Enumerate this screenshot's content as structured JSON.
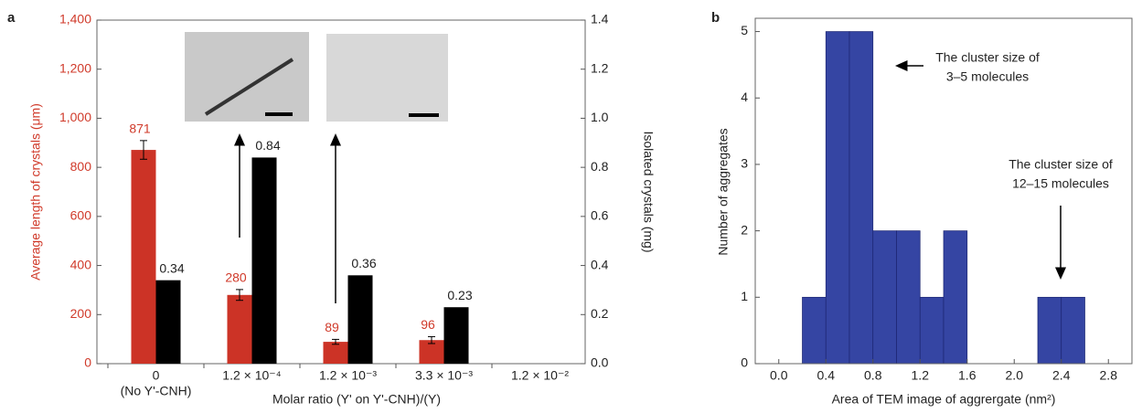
{
  "chart_data": [
    {
      "type": "bar",
      "panel": "a",
      "categories": [
        "0",
        "1.2 × 10⁻⁴",
        "1.2 × 10⁻³",
        "3.3 × 10⁻³",
        "1.2 × 10⁻²"
      ],
      "category_note": "(No Y'-CNH)",
      "xlabel": "Molar ratio (Y' on Y'-CNH)/(Y)",
      "ylabel": "Average length of crystals (μm)",
      "y2label": "Isolated crystals (mg)",
      "series": [
        {
          "color": "#cc3326",
          "values": [
            871,
            280,
            89,
            96,
            null
          ],
          "errors": [
            38,
            22,
            10,
            14,
            null
          ]
        },
        {
          "color": "#000000",
          "axis": "y2",
          "values": [
            0.34,
            0.84,
            0.36,
            0.23,
            null
          ]
        }
      ],
      "ylim": [
        0,
        1400
      ],
      "yticks": [
        0,
        200,
        400,
        600,
        800,
        {
          "value": 1000,
          "label": "1,000"
        },
        {
          "value": 1200,
          "label": "1,200"
        },
        {
          "value": 1400,
          "label": "1,400"
        }
      ],
      "y2lim": [
        0,
        1.4
      ],
      "y2ticks": [
        {
          "value": 0,
          "label": "0.0"
        },
        0.2,
        0.4,
        0.6,
        0.8,
        {
          "value": 1,
          "label": "1.0"
        },
        1.2,
        1.4
      ]
    },
    {
      "type": "histogram",
      "panel": "b",
      "xlabel": "Area of TEM image of aggrergate (nm²)",
      "ylabel": "Number of aggregates",
      "bins": [
        0.2,
        0.4,
        0.6,
        0.8,
        1.0,
        1.2,
        1.4,
        1.6,
        1.8,
        2.0,
        2.2,
        2.4,
        2.6
      ],
      "counts": [
        1,
        5,
        5,
        2,
        2,
        1,
        2,
        0,
        0,
        0,
        1,
        1
      ],
      "color": "#3545a3",
      "xlim": [
        -0.2,
        3.0
      ],
      "xticks": [
        {
          "value": 0,
          "label": "0.0"
        },
        0.4,
        0.8,
        1.2,
        1.6,
        {
          "value": 2,
          "label": "2.0"
        },
        2.4,
        2.8
      ],
      "ylim": [
        0,
        5.2
      ],
      "yticks": [
        0,
        1,
        2,
        3,
        4,
        5
      ],
      "annotations": [
        [
          "The cluster size of",
          "3–5 molecules"
        ],
        [
          "The cluster size of",
          "12–15 molecules"
        ]
      ]
    }
  ]
}
